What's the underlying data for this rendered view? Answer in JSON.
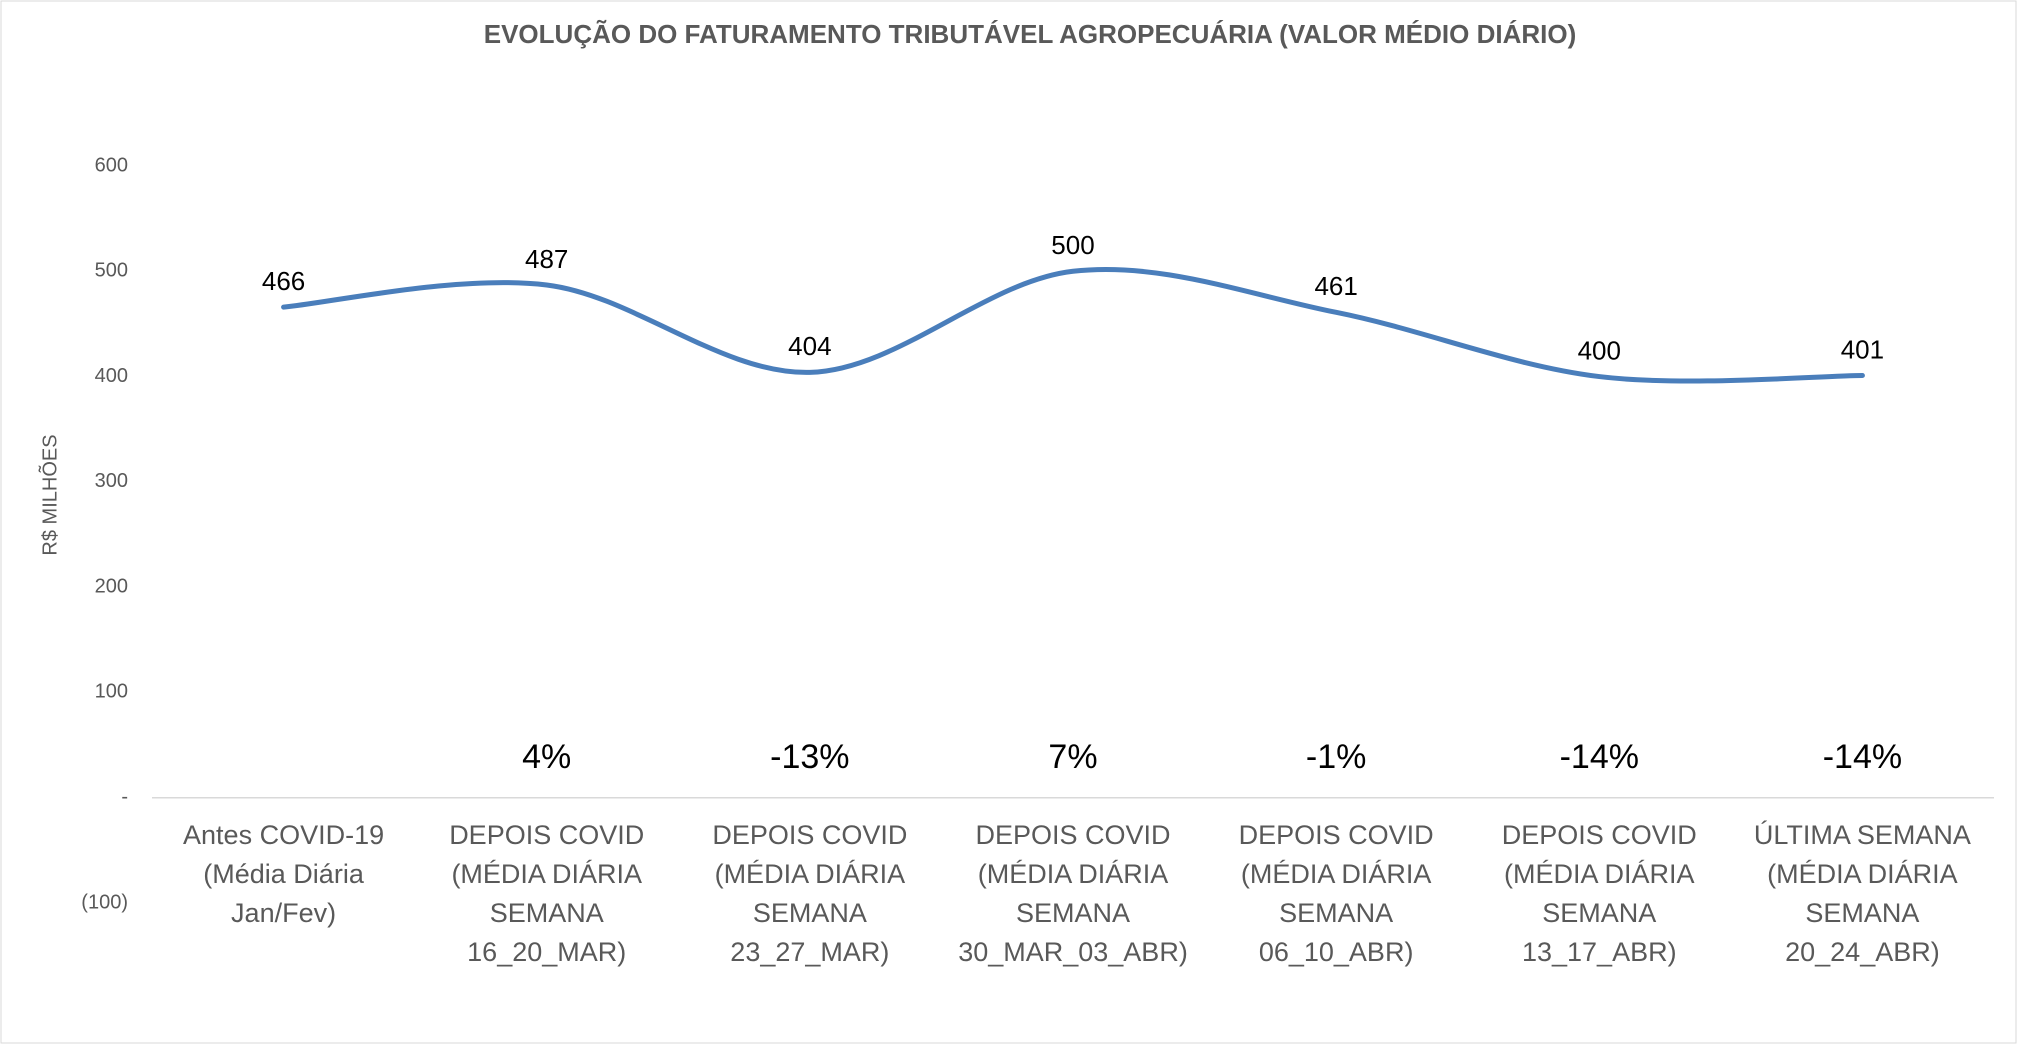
{
  "chart_data": {
    "type": "line",
    "title": "EVOLUÇÃO DO FATURAMENTO TRIBUTÁVEL  AGROPECUÁRIA (VALOR MÉDIO DIÁRIO)",
    "y_label": "R$ MILHÕES",
    "categories": [
      [
        "Antes COVID-19",
        "(Média Diária",
        "Jan/Fev)"
      ],
      [
        "DEPOIS COVID",
        "(MÉDIA DIÁRIA",
        "SEMANA",
        "16_20_MAR)"
      ],
      [
        "DEPOIS COVID",
        "(MÉDIA DIÁRIA",
        "SEMANA",
        "23_27_MAR)"
      ],
      [
        "DEPOIS COVID",
        "(MÉDIA DIÁRIA",
        "SEMANA",
        "30_MAR_03_ABR)"
      ],
      [
        "DEPOIS COVID",
        "(MÉDIA DIÁRIA",
        "SEMANA",
        "06_10_ABR)"
      ],
      [
        "DEPOIS COVID",
        "(MÉDIA DIÁRIA",
        "SEMANA",
        "13_17_ABR)"
      ],
      [
        "ÚLTIMA SEMANA",
        "(MÉDIA DIÁRIA",
        "SEMANA",
        "20_24_ABR)"
      ]
    ],
    "values": [
      466,
      487,
      404,
      500,
      461,
      400,
      401
    ],
    "change_labels": [
      null,
      "4%",
      "-13%",
      "7%",
      "-1%",
      "-14%",
      "-14%"
    ],
    "color": "#4a7ebb",
    "smooth": true,
    "ylim": [
      -100,
      600
    ],
    "yticks": [
      {
        "value": -100,
        "label": "(100)"
      },
      {
        "value": 0,
        "label": "-"
      },
      100,
      200,
      300,
      400,
      500,
      600
    ],
    "grid": false
  }
}
